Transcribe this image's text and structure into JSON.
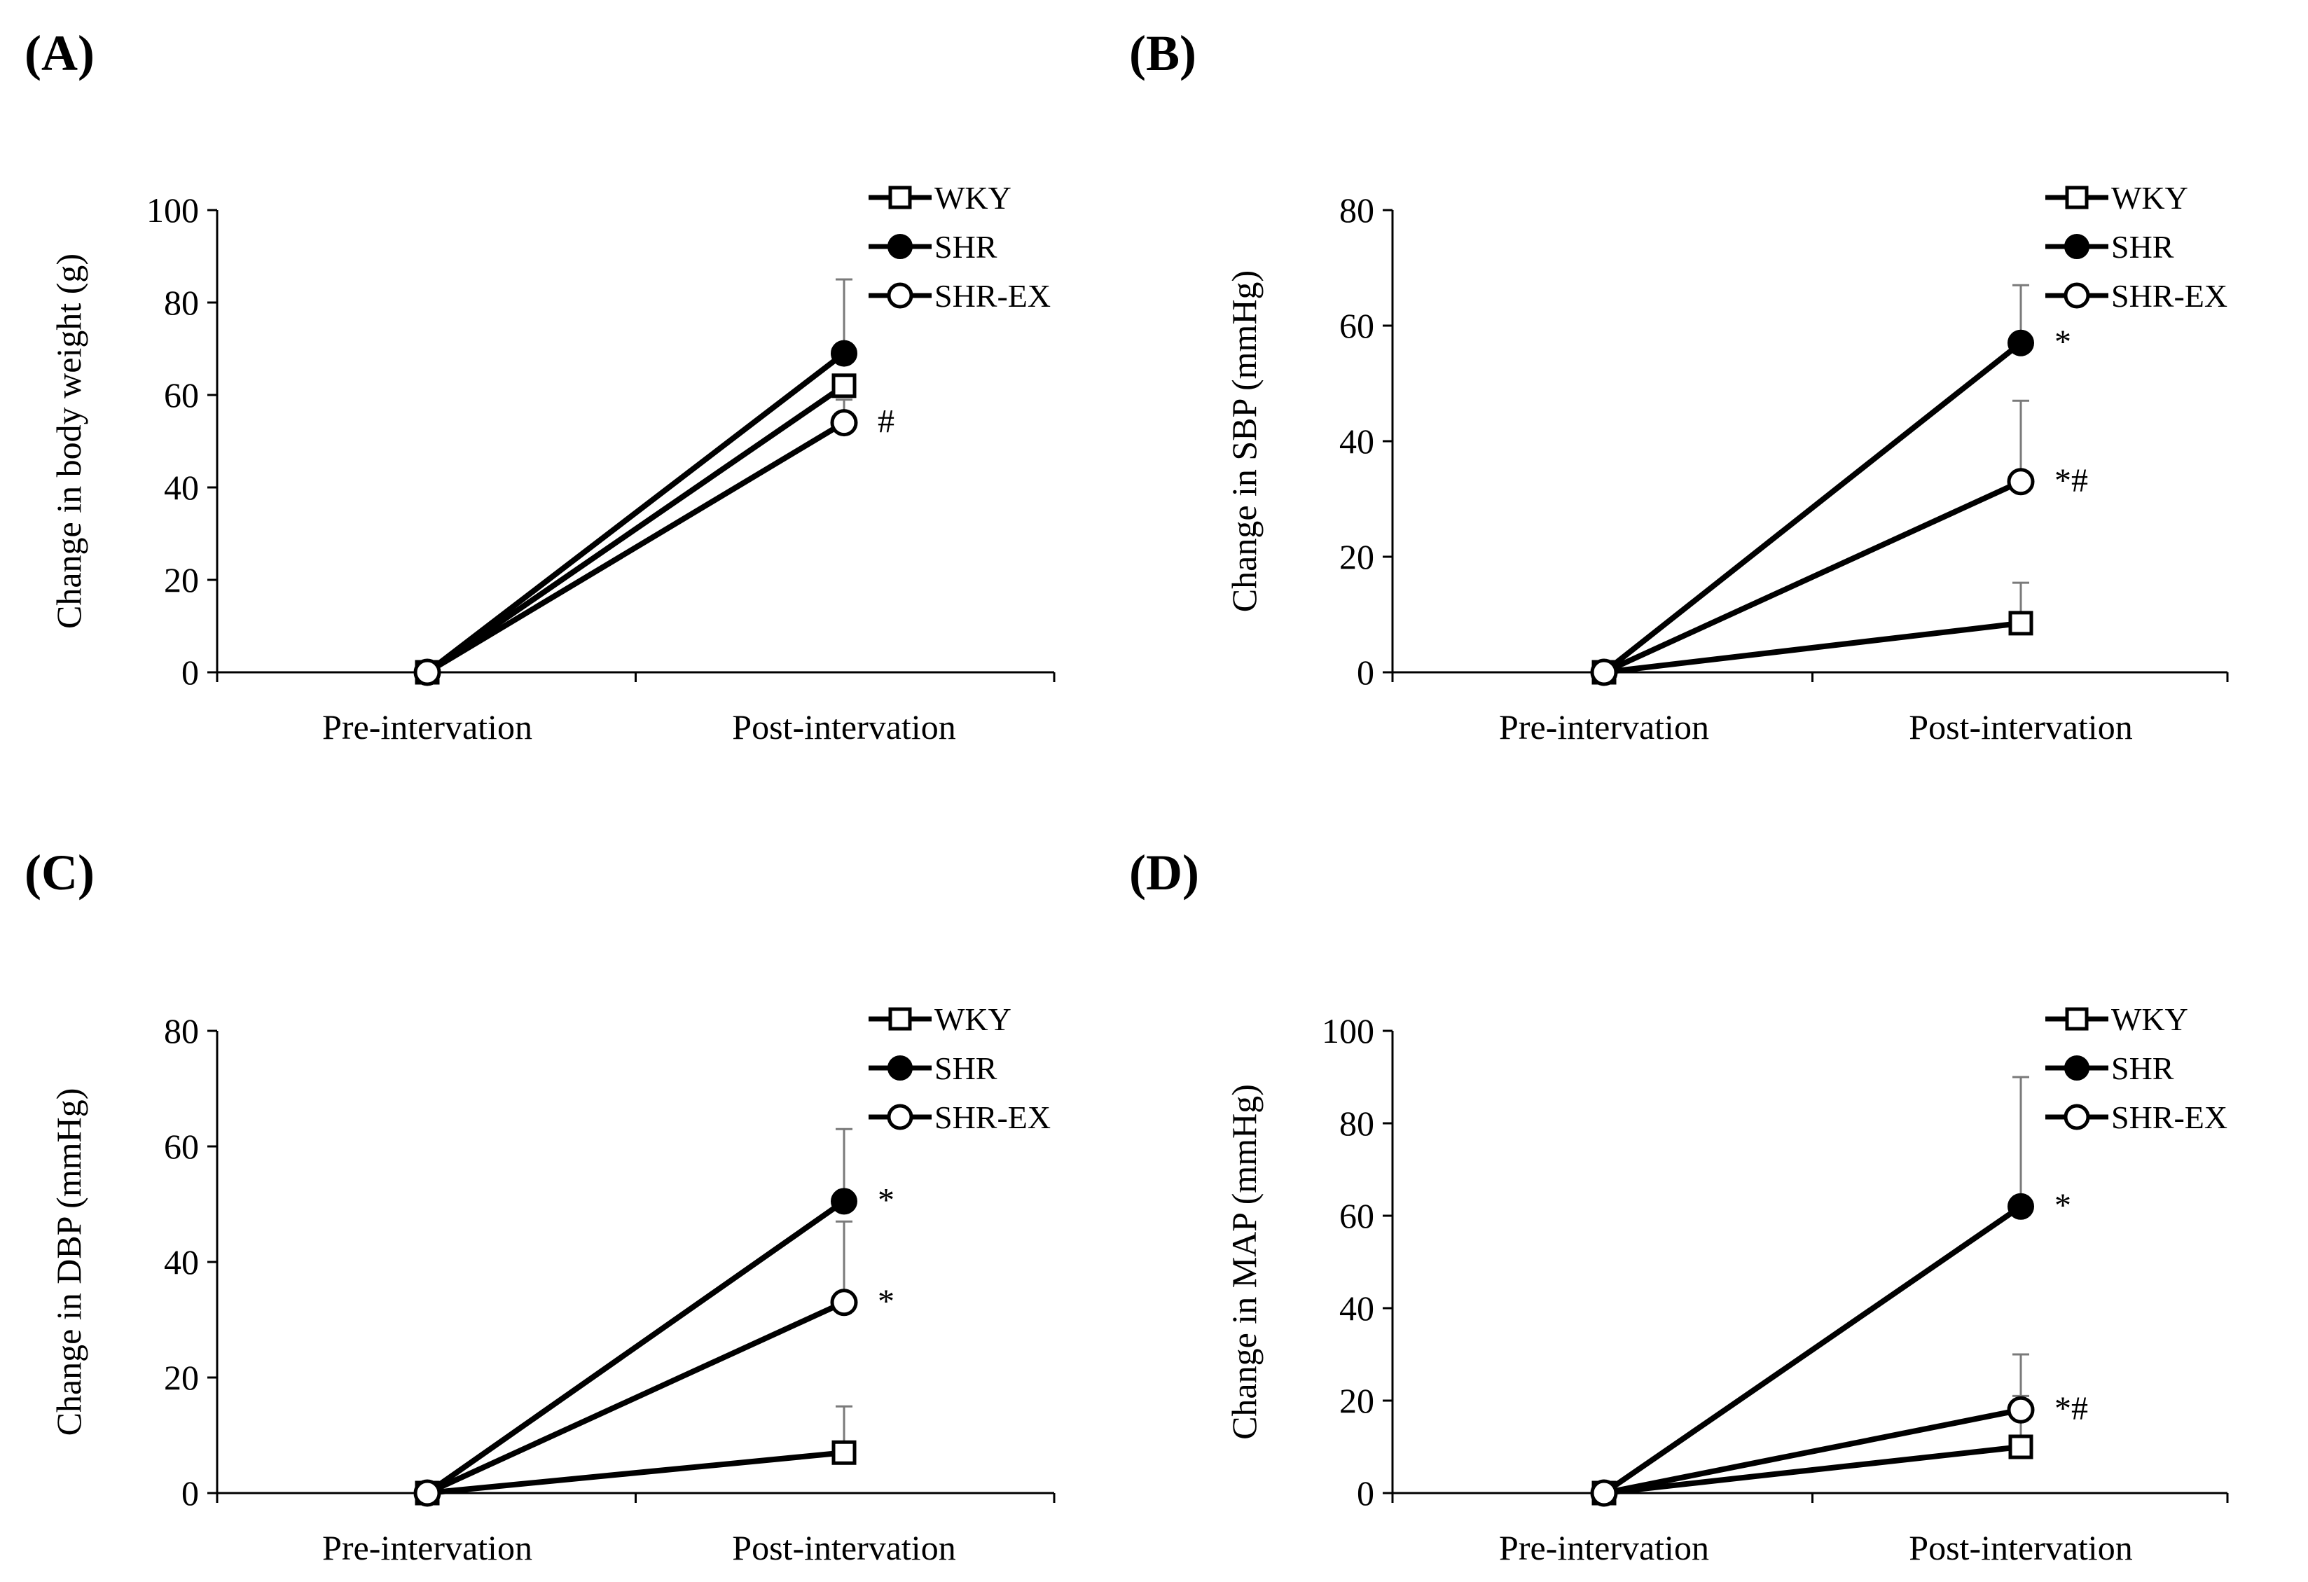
{
  "chart_data": [
    {
      "type": "line",
      "panel_label": "(A)",
      "ylabel": "Change in body weight  (g)",
      "xlabel": "",
      "categories": [
        "Pre-intervation",
        "Post-intervation"
      ],
      "ylim": [
        0,
        100
      ],
      "yticks": [
        0,
        20,
        40,
        60,
        80,
        100
      ],
      "grid": false,
      "legend_position": "top-right",
      "series": [
        {
          "name": "WKY",
          "marker": "open-square",
          "values": [
            0,
            62
          ],
          "error": [
            0,
            0
          ]
        },
        {
          "name": "SHR",
          "marker": "filled-circle",
          "values": [
            0,
            69
          ],
          "error": [
            0,
            16
          ]
        },
        {
          "name": "SHR-EX",
          "marker": "open-circle",
          "values": [
            0,
            54
          ],
          "error": [
            0,
            5
          ]
        }
      ],
      "annotations": [
        {
          "series": "SHR-EX",
          "text": "#"
        }
      ]
    },
    {
      "type": "line",
      "panel_label": "(B)",
      "ylabel": "Change in SBP (mmHg)",
      "xlabel": "",
      "categories": [
        "Pre-intervation",
        "Post-intervation"
      ],
      "ylim": [
        0,
        80
      ],
      "yticks": [
        0,
        20,
        40,
        60,
        80
      ],
      "grid": false,
      "legend_position": "top-right",
      "series": [
        {
          "name": "WKY",
          "marker": "open-square",
          "values": [
            0,
            8.5
          ],
          "error": [
            0,
            7
          ]
        },
        {
          "name": "SHR",
          "marker": "filled-circle",
          "values": [
            0,
            57
          ],
          "error": [
            0,
            10
          ]
        },
        {
          "name": "SHR-EX",
          "marker": "open-circle",
          "values": [
            0,
            33
          ],
          "error": [
            0,
            14
          ]
        }
      ],
      "annotations": [
        {
          "series": "SHR",
          "text": "*"
        },
        {
          "series": "SHR-EX",
          "text": "*#"
        }
      ]
    },
    {
      "type": "line",
      "panel_label": "(C)",
      "ylabel": "Change in DBP (mmHg)",
      "xlabel": "",
      "categories": [
        "Pre-intervation",
        "Post-intervation"
      ],
      "ylim": [
        0,
        80
      ],
      "yticks": [
        0,
        20,
        40,
        60,
        80
      ],
      "grid": false,
      "legend_position": "top-right",
      "series": [
        {
          "name": "WKY",
          "marker": "open-square",
          "values": [
            0,
            7
          ],
          "error": [
            0,
            8
          ]
        },
        {
          "name": "SHR",
          "marker": "filled-circle",
          "values": [
            0,
            50.5
          ],
          "error": [
            0,
            12.5
          ]
        },
        {
          "name": "SHR-EX",
          "marker": "open-circle",
          "values": [
            0,
            33
          ],
          "error": [
            0,
            14
          ]
        }
      ],
      "annotations": [
        {
          "series": "SHR",
          "text": "*"
        },
        {
          "series": "SHR-EX",
          "text": "*"
        }
      ]
    },
    {
      "type": "line",
      "panel_label": "(D)",
      "ylabel": "Change in MAP (mmHg)",
      "xlabel": "",
      "categories": [
        "Pre-intervation",
        "Post-intervation"
      ],
      "ylim": [
        0,
        100
      ],
      "yticks": [
        0,
        20,
        40,
        60,
        80,
        100
      ],
      "grid": false,
      "legend_position": "top-right",
      "series": [
        {
          "name": "WKY",
          "marker": "open-square",
          "values": [
            0,
            10
          ],
          "error": [
            0,
            11
          ]
        },
        {
          "name": "SHR",
          "marker": "filled-circle",
          "values": [
            0,
            62
          ],
          "error": [
            0,
            28
          ]
        },
        {
          "name": "SHR-EX",
          "marker": "open-circle",
          "values": [
            0,
            18
          ],
          "error": [
            0,
            12
          ]
        }
      ],
      "annotations": [
        {
          "series": "SHR",
          "text": "*"
        },
        {
          "series": "SHR-EX",
          "text": "*#"
        }
      ]
    }
  ]
}
